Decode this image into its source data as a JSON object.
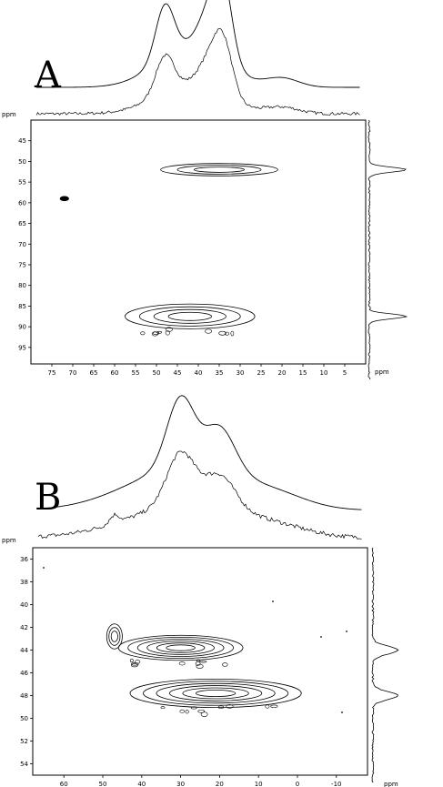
{
  "chart_data": [
    {
      "type": "heatmap",
      "subtype": "2D NMR contour plot with projections",
      "panel_label": "A",
      "unit_label": "ppm",
      "x_axis": {
        "reversed": true,
        "range": [
          80,
          0
        ],
        "ticks": [
          75,
          70,
          65,
          60,
          55,
          50,
          45,
          40,
          35,
          30,
          25,
          20,
          15,
          10,
          5
        ]
      },
      "y_axis": {
        "reversed": true,
        "range": [
          40,
          99
        ],
        "ticks": [
          45,
          50,
          55,
          60,
          65,
          70,
          75,
          80,
          85,
          90,
          95
        ]
      },
      "contour_peaks": [
        {
          "x_center": 35,
          "y_center": 52.0,
          "x_extent": [
            48,
            20
          ],
          "y_extent": [
            50.5,
            53.5
          ],
          "levels": 3
        },
        {
          "x_center": 72,
          "y_center": 59.0,
          "x_extent": [
            73,
            71
          ],
          "y_extent": [
            58.5,
            59.5
          ],
          "levels": 1
        },
        {
          "x_center": 42,
          "y_center": 87.5,
          "x_extent": [
            56,
            25
          ],
          "y_extent": [
            85.5,
            91.5
          ],
          "levels": 4
        }
      ],
      "top_projection_peaks_ppm": [
        48,
        38,
        34
      ],
      "side_projection_peaks_ppm": [
        52,
        87.5
      ],
      "grid": false
    },
    {
      "type": "heatmap",
      "subtype": "2D NMR contour plot with projections",
      "panel_label": "B",
      "unit_label": "ppm",
      "x_axis": {
        "reversed": true,
        "range": [
          68,
          -18
        ],
        "ticks": [
          60,
          50,
          40,
          30,
          20,
          10,
          0,
          -10
        ]
      },
      "y_axis": {
        "reversed": true,
        "range": [
          35,
          55
        ],
        "ticks": [
          36,
          38,
          40,
          42,
          44,
          46,
          48,
          50,
          52,
          54
        ]
      },
      "contour_peaks": [
        {
          "x_center": 30,
          "y_center": 43.8,
          "x_extent": [
            42,
            10
          ],
          "y_extent": [
            42.8,
            45.0
          ],
          "levels": 6
        },
        {
          "x_center": 21,
          "y_center": 47.8,
          "x_extent": [
            42,
            -2
          ],
          "y_extent": [
            46.5,
            49.0
          ],
          "levels": 6
        },
        {
          "x_center": 47,
          "y_center": 42.8,
          "x_extent": [
            49,
            45
          ],
          "y_extent": [
            41.8,
            44.0
          ],
          "levels": 3
        }
      ],
      "top_projection_peaks_ppm": [
        30,
        20,
        47
      ],
      "side_projection_peaks_ppm": [
        44,
        48
      ],
      "grid": false
    }
  ]
}
